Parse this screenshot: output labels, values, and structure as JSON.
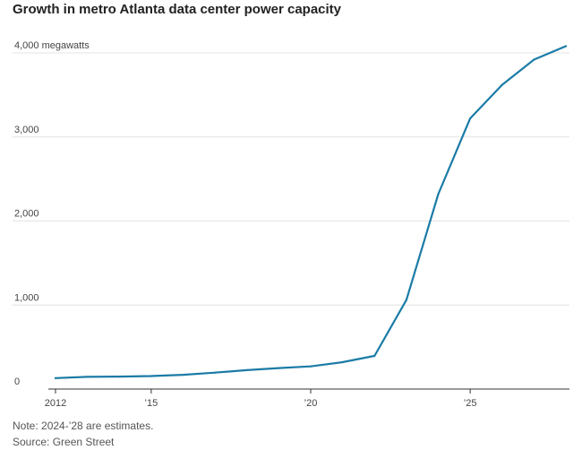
{
  "header": {
    "title": "Growth in metro Atlanta data center power capacity"
  },
  "footer": {
    "note": "Note: 2024-’28 are estimates.",
    "source": "Source: Green Street"
  },
  "colors": {
    "line": "#1b7ba6",
    "grid": "#e3e3e3",
    "axis": "#333333"
  },
  "chart_data": {
    "type": "line",
    "title": "Growth in metro Atlanta data center power capacity",
    "xlabel": "",
    "ylabel": "",
    "xlim": [
      2012,
      2028
    ],
    "ylim": [
      0,
      4000
    ],
    "grid": true,
    "y_ticks": [
      {
        "value": 4000,
        "label": "4,000 megawatts"
      },
      {
        "value": 3000,
        "label": "3,000"
      },
      {
        "value": 2000,
        "label": "2,000"
      },
      {
        "value": 1000,
        "label": "1,000"
      },
      {
        "value": 0,
        "label": "0"
      }
    ],
    "x_ticks": [
      {
        "value": 2012,
        "label": "2012"
      },
      {
        "value": 2015,
        "label": "’15"
      },
      {
        "value": 2020,
        "label": "’20"
      },
      {
        "value": 2025,
        "label": "’25"
      }
    ],
    "series": [
      {
        "x": [
          2012,
          2013,
          2014,
          2015,
          2016,
          2017,
          2018,
          2019,
          2020,
          2021,
          2022,
          2023,
          2024,
          2025,
          2026,
          2027,
          2028
        ],
        "values": [
          130,
          145,
          148,
          155,
          170,
          195,
          225,
          250,
          270,
          320,
          395,
          1060,
          2320,
          3220,
          3620,
          3920,
          4080
        ]
      }
    ]
  }
}
